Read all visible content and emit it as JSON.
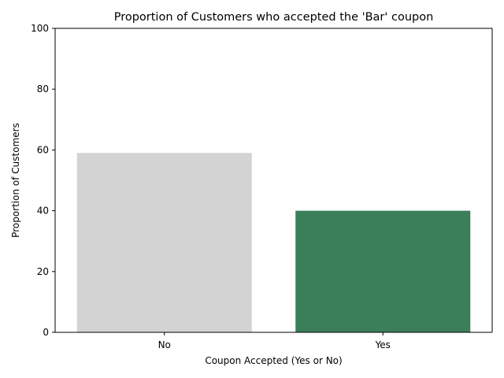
{
  "chart_data": {
    "type": "bar",
    "title": "Proportion of Customers who accepted the 'Bar' coupon",
    "xlabel": "Coupon Accepted (Yes or No)",
    "ylabel": "Proportion of Customers",
    "categories": [
      "No",
      "Yes"
    ],
    "values": [
      59,
      40
    ],
    "colors": [
      "#d3d3d3",
      "#3a7f5a"
    ],
    "ylim": [
      0,
      100
    ],
    "yticks": [
      0,
      20,
      40,
      60,
      80,
      100
    ],
    "ytick_labels": [
      "0",
      "20",
      "40",
      "60",
      "80",
      "100"
    ],
    "grid": false,
    "legend": "none"
  }
}
